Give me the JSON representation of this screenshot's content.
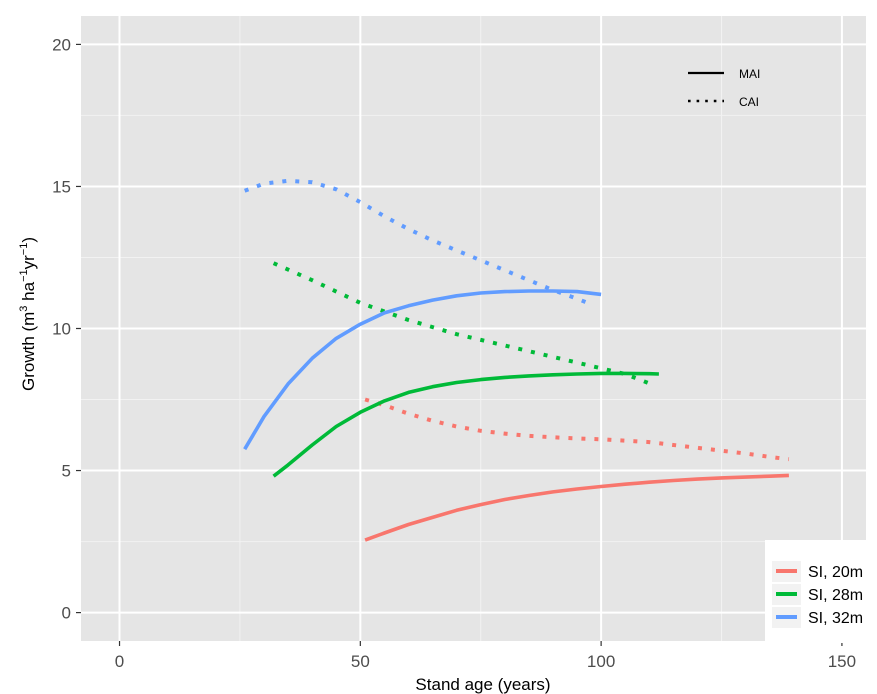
{
  "chart_data": {
    "type": "line",
    "xlabel": "Stand age (years)",
    "ylabel": {
      "prefix": "Growth (m",
      "sup1": "3",
      "mid1": " ha",
      "sup2": "−1",
      "mid2": "yr",
      "sup3": "−1",
      "suffix": ")"
    },
    "xlim": [
      -8,
      155
    ],
    "ylim": [
      -1,
      21
    ],
    "x_ticks": [
      0,
      50,
      100,
      150
    ],
    "y_ticks": [
      0,
      5,
      10,
      15,
      20
    ],
    "x_tick_labels": [
      "0",
      "50",
      "100",
      "150"
    ],
    "y_tick_labels": [
      "0",
      "5",
      "10",
      "15",
      "20"
    ],
    "grid": true,
    "panel_background": "#e5e5e5",
    "linetype_legend": {
      "position": "top-right",
      "entries": [
        {
          "label": "MAI",
          "linetype": "solid"
        },
        {
          "label": "CAI",
          "linetype": "dotted"
        }
      ]
    },
    "color_legend": {
      "position": "bottom-right",
      "entries": [
        {
          "label": "SI, 20m",
          "color": "#f8766d"
        },
        {
          "label": "SI, 28m",
          "color": "#00ba38"
        },
        {
          "label": "SI, 32m",
          "color": "#619cff"
        }
      ]
    },
    "series": [
      {
        "color_key": "SI, 20m",
        "color": "#f8766d",
        "linetype": "solid",
        "x": [
          51,
          55,
          60,
          65,
          70,
          75,
          80,
          85,
          90,
          95,
          100,
          105,
          110,
          115,
          120,
          125,
          130,
          135,
          139
        ],
        "y": [
          2.55,
          2.8,
          3.1,
          3.35,
          3.6,
          3.8,
          3.98,
          4.12,
          4.25,
          4.35,
          4.44,
          4.52,
          4.59,
          4.65,
          4.7,
          4.74,
          4.77,
          4.8,
          4.83
        ]
      },
      {
        "color_key": "SI, 20m",
        "color": "#f8766d",
        "linetype": "dotted",
        "x": [
          51,
          55,
          60,
          65,
          70,
          75,
          80,
          85,
          90,
          95,
          100,
          105,
          110,
          115,
          120,
          125,
          130,
          135,
          139
        ],
        "y": [
          7.5,
          7.3,
          7.0,
          6.75,
          6.55,
          6.4,
          6.3,
          6.22,
          6.17,
          6.13,
          6.1,
          6.05,
          6.0,
          5.9,
          5.8,
          5.7,
          5.6,
          5.48,
          5.4
        ]
      },
      {
        "color_key": "SI, 28m",
        "color": "#00ba38",
        "linetype": "solid",
        "x": [
          32,
          35,
          40,
          45,
          50,
          55,
          60,
          65,
          70,
          75,
          80,
          85,
          90,
          95,
          100,
          105,
          110,
          112
        ],
        "y": [
          4.8,
          5.2,
          5.9,
          6.55,
          7.05,
          7.45,
          7.75,
          7.95,
          8.1,
          8.2,
          8.28,
          8.33,
          8.37,
          8.4,
          8.42,
          8.42,
          8.41,
          8.4
        ]
      },
      {
        "color_key": "SI, 28m",
        "color": "#00ba38",
        "linetype": "dotted",
        "x": [
          32,
          40,
          50,
          60,
          70,
          80,
          90,
          100,
          105,
          111
        ],
        "y": [
          12.3,
          11.7,
          10.9,
          10.3,
          9.8,
          9.4,
          9.0,
          8.6,
          8.4,
          8.0
        ]
      },
      {
        "color_key": "SI, 32m",
        "color": "#619cff",
        "linetype": "solid",
        "x": [
          26,
          30,
          35,
          40,
          45,
          50,
          55,
          60,
          65,
          70,
          75,
          80,
          85,
          90,
          95,
          100
        ],
        "y": [
          5.75,
          6.9,
          8.05,
          8.95,
          9.65,
          10.15,
          10.55,
          10.8,
          11.0,
          11.15,
          11.25,
          11.3,
          11.32,
          11.32,
          11.3,
          11.2
        ]
      },
      {
        "color_key": "SI, 32m",
        "color": "#619cff",
        "linetype": "dotted",
        "x": [
          26,
          30,
          35,
          40,
          45,
          50,
          55,
          60,
          65,
          70,
          75,
          80,
          85,
          90,
          95,
          98
        ],
        "y": [
          14.85,
          15.1,
          15.2,
          15.15,
          14.9,
          14.45,
          13.95,
          13.5,
          13.1,
          12.75,
          12.4,
          12.05,
          11.7,
          11.35,
          11.05,
          10.85
        ]
      }
    ]
  }
}
